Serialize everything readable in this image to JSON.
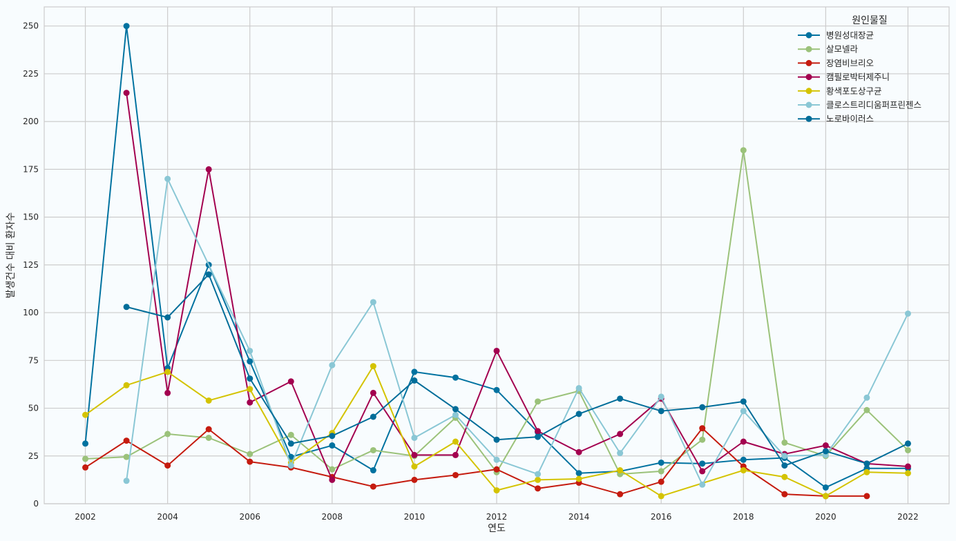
{
  "chart_data": {
    "type": "line",
    "xlabel": "연도",
    "ylabel": "발생건수 대비 환자수",
    "xlim": [
      2001,
      2023
    ],
    "ylim": [
      0,
      260
    ],
    "xticks": [
      2002,
      2004,
      2006,
      2008,
      2010,
      2012,
      2014,
      2016,
      2018,
      2020,
      2022
    ],
    "yticks": [
      0,
      25,
      50,
      75,
      100,
      125,
      150,
      175,
      200,
      225,
      250
    ],
    "grid": true,
    "legend": {
      "title": "원인물질",
      "placement": "top-right"
    },
    "series": [
      {
        "name": "병원성대장균",
        "color": "#0072a0",
        "points": [
          [
            2002,
            31.5
          ],
          [
            2003,
            250
          ],
          [
            2004,
            71
          ],
          [
            2005,
            125
          ],
          [
            2006,
            74.5
          ],
          [
            2007,
            24.5
          ],
          [
            2008,
            30.5
          ],
          [
            2009,
            17.5
          ],
          [
            2010,
            69
          ],
          [
            2011,
            66
          ],
          [
            2012,
            59.5
          ],
          [
            2013,
            37.5
          ],
          [
            2014,
            16
          ],
          [
            2015,
            17
          ],
          [
            2016,
            21.5
          ],
          [
            2017,
            21
          ],
          [
            2018,
            23
          ],
          [
            2019,
            24
          ],
          [
            2020,
            8.5
          ],
          [
            2021,
            18.5
          ],
          [
            2022,
            18.5
          ]
        ]
      },
      {
        "name": "살모넬라",
        "color": "#9bc27a",
        "points": [
          [
            2002,
            23.5
          ],
          [
            2003,
            24.5
          ],
          [
            2004,
            36.5
          ],
          [
            2005,
            34.5
          ],
          [
            2006,
            26
          ],
          [
            2007,
            36
          ],
          [
            2008,
            18
          ],
          [
            2009,
            28
          ],
          [
            2010,
            25
          ],
          [
            2011,
            45
          ],
          [
            2012,
            16.5
          ],
          [
            2013,
            53.5
          ],
          [
            2014,
            59
          ],
          [
            2015,
            15.5
          ],
          [
            2016,
            17
          ],
          [
            2017,
            33.5
          ],
          [
            2018,
            185
          ],
          [
            2019,
            32
          ],
          [
            2020,
            25
          ],
          [
            2021,
            49
          ],
          [
            2022,
            28
          ]
        ]
      },
      {
        "name": "장염비브리오",
        "color": "#c51b0f",
        "points": [
          [
            2002,
            19
          ],
          [
            2003,
            33
          ],
          [
            2004,
            20
          ],
          [
            2005,
            39
          ],
          [
            2006,
            22
          ],
          [
            2007,
            19
          ],
          [
            2008,
            14
          ],
          [
            2009,
            9
          ],
          [
            2010,
            12.5
          ],
          [
            2011,
            15
          ],
          [
            2012,
            18
          ],
          [
            2013,
            8
          ],
          [
            2014,
            11
          ],
          [
            2015,
            5
          ],
          [
            2016,
            11.5
          ],
          [
            2017,
            39.5
          ],
          [
            2018,
            19.5
          ],
          [
            2019,
            5
          ],
          [
            2020,
            4
          ],
          [
            2021,
            4
          ]
        ]
      },
      {
        "name": "캠필로박터제주니",
        "color": "#a3004f",
        "points": [
          [
            2003,
            215
          ],
          [
            2004,
            58
          ],
          [
            2005,
            175
          ],
          [
            2006,
            53
          ],
          [
            2007,
            64
          ],
          [
            2008,
            12.5
          ],
          [
            2009,
            58
          ],
          [
            2010,
            25.5
          ],
          [
            2011,
            25.5
          ],
          [
            2012,
            80
          ],
          [
            2013,
            38
          ],
          [
            2014,
            27
          ],
          [
            2015,
            36.5
          ],
          [
            2016,
            55
          ],
          [
            2017,
            17
          ],
          [
            2018,
            32.5
          ],
          [
            2019,
            26
          ],
          [
            2020,
            30.5
          ],
          [
            2021,
            21
          ],
          [
            2022,
            19.5
          ]
        ]
      },
      {
        "name": "황색포도상구균",
        "color": "#d4c300",
        "points": [
          [
            2002,
            46.5
          ],
          [
            2003,
            62
          ],
          [
            2004,
            69
          ],
          [
            2005,
            54
          ],
          [
            2006,
            60
          ],
          [
            2007,
            21.5
          ],
          [
            2008,
            37
          ],
          [
            2009,
            72
          ],
          [
            2010,
            19.5
          ],
          [
            2011,
            32.5
          ],
          [
            2012,
            7
          ],
          [
            2013,
            12.5
          ],
          [
            2014,
            13
          ],
          [
            2015,
            17.5
          ],
          [
            2016,
            4
          ],
          [
            2018,
            17.5
          ],
          [
            2019,
            14
          ],
          [
            2020,
            4
          ],
          [
            2021,
            16.5
          ],
          [
            2022,
            16
          ]
        ]
      },
      {
        "name": "클로스트리디움퍼프린젠스",
        "color": "#8ac7d5",
        "points": [
          [
            2003,
            12
          ],
          [
            2004,
            170
          ],
          [
            2006,
            80
          ],
          [
            2007,
            20
          ],
          [
            2008,
            72.5
          ],
          [
            2009,
            105.5
          ],
          [
            2010,
            34.5
          ],
          [
            2011,
            46.5
          ],
          [
            2012,
            23
          ],
          [
            2013,
            15.5
          ],
          [
            2014,
            60.5
          ],
          [
            2015,
            26.5
          ],
          [
            2016,
            56
          ],
          [
            2017,
            10
          ],
          [
            2018,
            48.5
          ],
          [
            2019,
            25
          ],
          [
            2020,
            25.5
          ],
          [
            2021,
            55.5
          ],
          [
            2022,
            99.5
          ]
        ]
      },
      {
        "name": "노로바이러스",
        "color": "#006d99",
        "points": [
          [
            2003,
            103
          ],
          [
            2004,
            97.5
          ],
          [
            2005,
            120
          ],
          [
            2006,
            65.5
          ],
          [
            2007,
            31.5
          ],
          [
            2008,
            35.5
          ],
          [
            2009,
            45.5
          ],
          [
            2010,
            64.5
          ],
          [
            2011,
            49.5
          ],
          [
            2012,
            33.5
          ],
          [
            2013,
            35
          ],
          [
            2014,
            47
          ],
          [
            2015,
            55
          ],
          [
            2016,
            48.5
          ],
          [
            2017,
            50.5
          ],
          [
            2018,
            53.5
          ],
          [
            2019,
            20
          ],
          [
            2020,
            27.5
          ],
          [
            2021,
            21
          ],
          [
            2022,
            31.5
          ]
        ]
      }
    ]
  }
}
